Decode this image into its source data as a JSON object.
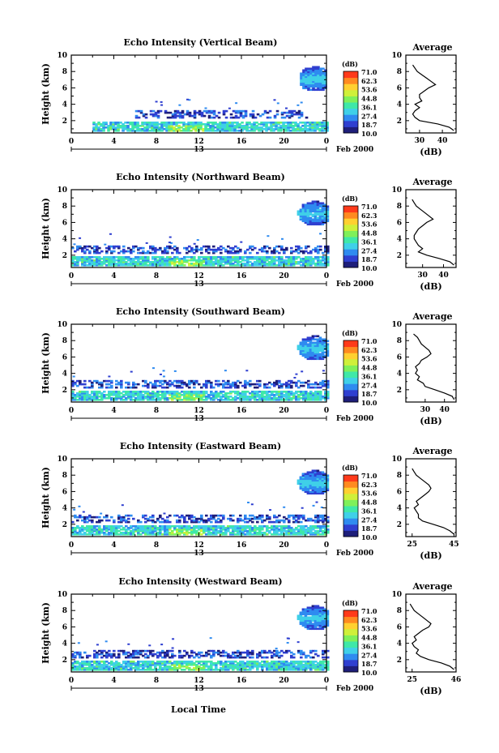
{
  "figure": {
    "xlabel": "Local Time"
  },
  "colorbar": {
    "unit": "(dB)",
    "labels": [
      "71.0",
      "62.3",
      "53.6",
      "44.8",
      "36.1",
      "27.4",
      "18.7",
      "10.0"
    ],
    "vmin": 10.0,
    "vmax": 71.0,
    "colormap": [
      "#1e1e7a",
      "#2f3fd0",
      "#2f8bf0",
      "#3fd0e8",
      "#3fe8a8",
      "#7ff05a",
      "#cff03a",
      "#ffd030",
      "#ff8a20",
      "#ff3a1a"
    ]
  },
  "chart_data": [
    {
      "type": "heatmap",
      "title": "Echo Intensity (Vertical Beam)",
      "xlabel": "",
      "ylabel": "Height (km)",
      "xlim": [
        0,
        24
      ],
      "ylim": [
        0.5,
        10
      ],
      "xticks": [
        "0",
        "4",
        "8",
        "12",
        "16",
        "20",
        "0"
      ],
      "yticks": [
        "2",
        "4",
        "6",
        "8",
        "10"
      ],
      "date_axis": {
        "day": "13",
        "month": "Feb 2000"
      },
      "bands": [
        {
          "layer": "surface",
          "height_km": [
            0.7,
            1.7
          ],
          "time_h": [
            2,
            24
          ],
          "value_db": 33
        },
        {
          "layer": "upper",
          "height_km": [
            2.3,
            3.1
          ],
          "time_h": [
            6,
            22
          ],
          "value_db": 20
        },
        {
          "layer": "cloud",
          "height_km": [
            5.5,
            8.5
          ],
          "time_h": [
            21.5,
            24
          ],
          "value_db": 25
        }
      ],
      "average": {
        "title": "Average",
        "xlabel": "(dB)",
        "xticks": [
          "30",
          "40"
        ],
        "xlim": [
          24,
          46
        ],
        "yticks": [
          "2",
          "4",
          "6",
          "8",
          "10"
        ],
        "heights_km": [
          0.8,
          1.2,
          1.6,
          2.0,
          2.4,
          2.8,
          3.2,
          3.6,
          4.0,
          4.4,
          4.8,
          5.2,
          5.6,
          6.0,
          6.4,
          6.8,
          7.2,
          7.6,
          8.0,
          8.4,
          8.8
        ],
        "values_db": [
          45,
          43,
          38,
          30,
          28,
          27,
          28,
          30,
          28,
          31,
          30,
          30,
          32,
          34,
          37,
          35,
          33,
          31,
          29,
          28,
          27
        ]
      }
    },
    {
      "type": "heatmap",
      "title": "Echo Intensity (Northward Beam)",
      "xlabel": "",
      "ylabel": "Height (km)",
      "xlim": [
        0,
        24
      ],
      "ylim": [
        0.5,
        10
      ],
      "xticks": [
        "0",
        "4",
        "8",
        "12",
        "16",
        "20",
        "0"
      ],
      "yticks": [
        "2",
        "4",
        "6",
        "8",
        "10"
      ],
      "date_axis": {
        "day": "13",
        "month": "Feb 2000"
      },
      "bands": [
        {
          "layer": "surface",
          "height_km": [
            0.7,
            1.7
          ],
          "time_h": [
            0,
            24
          ],
          "value_db": 33
        },
        {
          "layer": "upper",
          "height_km": [
            2.2,
            3.1
          ],
          "time_h": [
            0,
            24
          ],
          "value_db": 20
        },
        {
          "layer": "cloud",
          "height_km": [
            5.5,
            8.5
          ],
          "time_h": [
            21,
            24
          ],
          "value_db": 25
        }
      ],
      "average": {
        "title": "Average",
        "xlabel": "(dB)",
        "xticks": [
          "30",
          "40"
        ],
        "xlim": [
          22,
          46
        ],
        "yticks": [
          "2",
          "4",
          "6",
          "8",
          "10"
        ],
        "heights_km": [
          0.8,
          1.2,
          1.6,
          2.0,
          2.4,
          2.8,
          3.2,
          3.6,
          4.0,
          4.4,
          4.8,
          5.2,
          5.6,
          6.0,
          6.4,
          6.8,
          7.2,
          7.6,
          8.0,
          8.4,
          8.8
        ],
        "values_db": [
          45,
          43,
          38,
          32,
          28,
          30,
          28,
          27,
          26,
          26,
          27,
          28,
          30,
          32,
          35,
          33,
          31,
          29,
          27,
          26,
          25
        ]
      }
    },
    {
      "type": "heatmap",
      "title": "Echo Intensity (Southward Beam)",
      "xlabel": "",
      "ylabel": "Height (km)",
      "xlim": [
        0,
        24
      ],
      "ylim": [
        0.5,
        10
      ],
      "xticks": [
        "0",
        "4",
        "8",
        "12",
        "16",
        "20",
        "0"
      ],
      "yticks": [
        "2",
        "4",
        "6",
        "8",
        "10"
      ],
      "date_axis": {
        "day": "13",
        "month": "Feb 2000"
      },
      "bands": [
        {
          "layer": "surface",
          "height_km": [
            0.7,
            1.7
          ],
          "time_h": [
            0,
            24
          ],
          "value_db": 33
        },
        {
          "layer": "upper",
          "height_km": [
            2.2,
            3.1
          ],
          "time_h": [
            0,
            24
          ],
          "value_db": 20
        },
        {
          "layer": "cloud",
          "height_km": [
            5.5,
            8.5
          ],
          "time_h": [
            21,
            24
          ],
          "value_db": 25
        }
      ],
      "average": {
        "title": "Average",
        "xlabel": "(dB)",
        "xticks": [
          "30",
          "40"
        ],
        "xlim": [
          20,
          46
        ],
        "yticks": [
          "2",
          "4",
          "6",
          "8",
          "10"
        ],
        "heights_km": [
          0.8,
          1.2,
          1.6,
          2.0,
          2.4,
          2.8,
          3.2,
          3.6,
          4.0,
          4.4,
          4.8,
          5.2,
          5.6,
          6.0,
          6.4,
          6.8,
          7.2,
          7.6,
          8.0,
          8.4,
          8.8
        ],
        "values_db": [
          45,
          44,
          40,
          35,
          30,
          29,
          26,
          27,
          25,
          26,
          25,
          27,
          28,
          31,
          33,
          32,
          30,
          28,
          27,
          26,
          24
        ]
      }
    },
    {
      "type": "heatmap",
      "title": "Echo Intensity (Eastward Beam)",
      "xlabel": "",
      "ylabel": "Height (km)",
      "xlim": [
        0,
        24
      ],
      "ylim": [
        0.5,
        10
      ],
      "xticks": [
        "0",
        "4",
        "8",
        "12",
        "16",
        "20",
        "0"
      ],
      "yticks": [
        "2",
        "4",
        "6",
        "8",
        "10"
      ],
      "date_axis": {
        "day": "13",
        "month": "Feb 2000"
      },
      "bands": [
        {
          "layer": "surface",
          "height_km": [
            0.7,
            1.7
          ],
          "time_h": [
            0,
            24
          ],
          "value_db": 33
        },
        {
          "layer": "upper",
          "height_km": [
            2.2,
            3.1
          ],
          "time_h": [
            0,
            24
          ],
          "value_db": 20
        },
        {
          "layer": "cloud",
          "height_km": [
            5.5,
            8.5
          ],
          "time_h": [
            21,
            24
          ],
          "value_db": 25
        }
      ],
      "average": {
        "title": "Average",
        "xlabel": "(dB)",
        "xticks": [
          "25",
          "45"
        ],
        "xlim": [
          22,
          46
        ],
        "yticks": [
          "2",
          "4",
          "6",
          "8",
          "10"
        ],
        "heights_km": [
          0.8,
          1.2,
          1.6,
          2.0,
          2.4,
          2.8,
          3.2,
          3.6,
          4.0,
          4.4,
          4.8,
          5.2,
          5.6,
          6.0,
          6.4,
          6.8,
          7.2,
          7.6,
          8.0,
          8.4,
          8.8
        ],
        "values_db": [
          45,
          43,
          40,
          35,
          30,
          28,
          28,
          27,
          26,
          28,
          27,
          29,
          31,
          33,
          34,
          33,
          31,
          29,
          27,
          26,
          25
        ]
      }
    },
    {
      "type": "heatmap",
      "title": "Echo Intensity (Westward Beam)",
      "xlabel": "",
      "ylabel": "Height (km)",
      "xlim": [
        0,
        24
      ],
      "ylim": [
        0.5,
        10
      ],
      "xticks": [
        "0",
        "4",
        "8",
        "12",
        "16",
        "20",
        "0"
      ],
      "yticks": [
        "2",
        "4",
        "6",
        "8",
        "10"
      ],
      "date_axis": {
        "day": "13",
        "month": "Feb 2000"
      },
      "bands": [
        {
          "layer": "surface",
          "height_km": [
            0.7,
            1.7
          ],
          "time_h": [
            0,
            24
          ],
          "value_db": 33
        },
        {
          "layer": "upper",
          "height_km": [
            2.2,
            3.1
          ],
          "time_h": [
            0,
            24
          ],
          "value_db": 20
        },
        {
          "layer": "cloud",
          "height_km": [
            5.5,
            8.5
          ],
          "time_h": [
            21,
            24
          ],
          "value_db": 25
        }
      ],
      "average": {
        "title": "Average",
        "xlabel": "(dB)",
        "xticks": [
          "25",
          "46"
        ],
        "xlim": [
          22,
          46
        ],
        "yticks": [
          "2",
          "4",
          "6",
          "8",
          "10"
        ],
        "heights_km": [
          0.8,
          1.2,
          1.6,
          2.0,
          2.4,
          2.8,
          3.2,
          3.6,
          4.0,
          4.4,
          4.8,
          5.2,
          5.6,
          6.0,
          6.4,
          6.8,
          7.2,
          7.6,
          8.0,
          8.4,
          8.8
        ],
        "values_db": [
          45,
          43,
          39,
          33,
          29,
          27,
          28,
          26,
          25,
          27,
          26,
          28,
          30,
          33,
          34,
          32,
          30,
          28,
          26,
          25,
          24
        ]
      }
    }
  ]
}
